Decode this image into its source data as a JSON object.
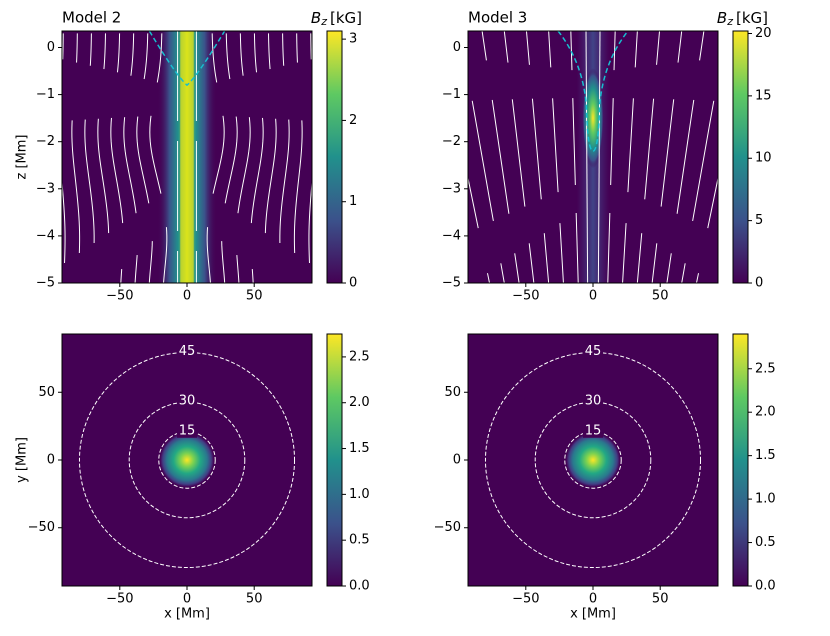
{
  "chart_data": [
    {
      "type": "heatmap",
      "title": "Model 2",
      "colorbar_label": {
        "symbol": "B",
        "subscript": "z",
        "unit": "[kG]"
      },
      "ylabel": "z [Mm]",
      "xlim": [
        -93,
        93
      ],
      "ylim": [
        -5,
        0.35
      ],
      "xticks": [
        {
          "value": -50,
          "label": "−50"
        },
        0,
        50
      ],
      "yticks": [
        {
          "value": -5,
          "label": "−5"
        },
        {
          "value": -4,
          "label": "−4"
        },
        {
          "value": -3,
          "label": "−3"
        },
        {
          "value": -2,
          "label": "−2"
        },
        {
          "value": -1,
          "label": "−1"
        },
        0
      ],
      "clim": [
        0,
        3.1
      ],
      "cticks": [
        0,
        1,
        2,
        3
      ]
    },
    {
      "type": "heatmap",
      "title": "Model 3",
      "colorbar_label": {
        "symbol": "B",
        "subscript": "z",
        "unit": "[kG]"
      },
      "xlim": [
        -93,
        93
      ],
      "ylim": [
        -5,
        0.35
      ],
      "xticks": [
        {
          "value": -50,
          "label": "−50"
        },
        0,
        50
      ],
      "yticks": [
        {
          "value": -5,
          "label": "−5"
        },
        {
          "value": -4,
          "label": "−4"
        },
        {
          "value": -3,
          "label": "−3"
        },
        {
          "value": -2,
          "label": "−2"
        },
        {
          "value": -1,
          "label": "−1"
        },
        0
      ],
      "clim": [
        0,
        20.2
      ],
      "cticks": [
        0,
        5,
        10,
        15,
        20
      ]
    },
    {
      "type": "heatmap",
      "xlabel": "x [Mm]",
      "ylabel": "y [Mm]",
      "xlim": [
        -93,
        93
      ],
      "ylim": [
        -93,
        93
      ],
      "xticks": [
        {
          "value": -50,
          "label": "−50"
        },
        0,
        50
      ],
      "yticks": [
        {
          "value": -50,
          "label": "−50"
        },
        0,
        50
      ],
      "clim": [
        0,
        2.75
      ],
      "cticks": [
        {
          "value": 0,
          "label": "0.0"
        },
        0.5,
        {
          "value": 1,
          "label": "1.0"
        },
        1.5,
        {
          "value": 2,
          "label": "2.0"
        },
        2.5
      ],
      "contours": [
        {
          "level": 15,
          "radius": 21
        },
        {
          "level": 30,
          "radius": 43
        },
        {
          "level": 45,
          "radius": 80
        }
      ]
    },
    {
      "type": "heatmap",
      "xlabel": "x [Mm]",
      "xlim": [
        -93,
        93
      ],
      "ylim": [
        -93,
        93
      ],
      "xticks": [
        {
          "value": -50,
          "label": "−50"
        },
        0,
        50
      ],
      "yticks": [
        {
          "value": -50,
          "label": "−50"
        },
        0,
        50
      ],
      "clim": [
        0,
        2.9
      ],
      "cticks": [
        {
          "value": 0,
          "label": "0.0"
        },
        0.5,
        {
          "value": 1,
          "label": "1.0"
        },
        1.5,
        {
          "value": 2,
          "label": "2.0"
        },
        2.5
      ],
      "contours": [
        {
          "level": 15,
          "radius": 21
        },
        {
          "level": 30,
          "radius": 43
        },
        {
          "level": 45,
          "radius": 80
        }
      ]
    }
  ]
}
